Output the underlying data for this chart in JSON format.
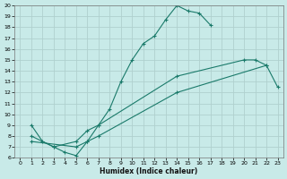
{
  "xlabel": "Humidex (Indice chaleur)",
  "bg_color": "#c8eae8",
  "grid_color": "#b0d0ce",
  "line_color": "#1a7a6a",
  "xlim": [
    -0.5,
    23.5
  ],
  "ylim": [
    6,
    20
  ],
  "xticks": [
    0,
    1,
    2,
    3,
    4,
    5,
    6,
    7,
    8,
    9,
    10,
    11,
    12,
    13,
    14,
    15,
    16,
    17,
    18,
    19,
    20,
    21,
    22,
    23
  ],
  "yticks": [
    6,
    7,
    8,
    9,
    10,
    11,
    12,
    13,
    14,
    15,
    16,
    17,
    18,
    19,
    20
  ],
  "line1_x": [
    1,
    2,
    3,
    4,
    5,
    6,
    7,
    8,
    9,
    10,
    11,
    12,
    13,
    14,
    15,
    16,
    17
  ],
  "line1_y": [
    9,
    7.5,
    7,
    6.5,
    6.2,
    7.5,
    9,
    10.5,
    13,
    15,
    16.5,
    17.2,
    18.7,
    20,
    19.5,
    19.3,
    18.2
  ],
  "line2_x": [
    1,
    3,
    5,
    6,
    7,
    14,
    20,
    21,
    22
  ],
  "line2_y": [
    8,
    7,
    7.5,
    8.5,
    9,
    13.5,
    15,
    15,
    14.5
  ],
  "line3_x": [
    1,
    5,
    6,
    7,
    14,
    22,
    23
  ],
  "line3_y": [
    7.5,
    7,
    7.5,
    8,
    12,
    14.5,
    12.5
  ]
}
